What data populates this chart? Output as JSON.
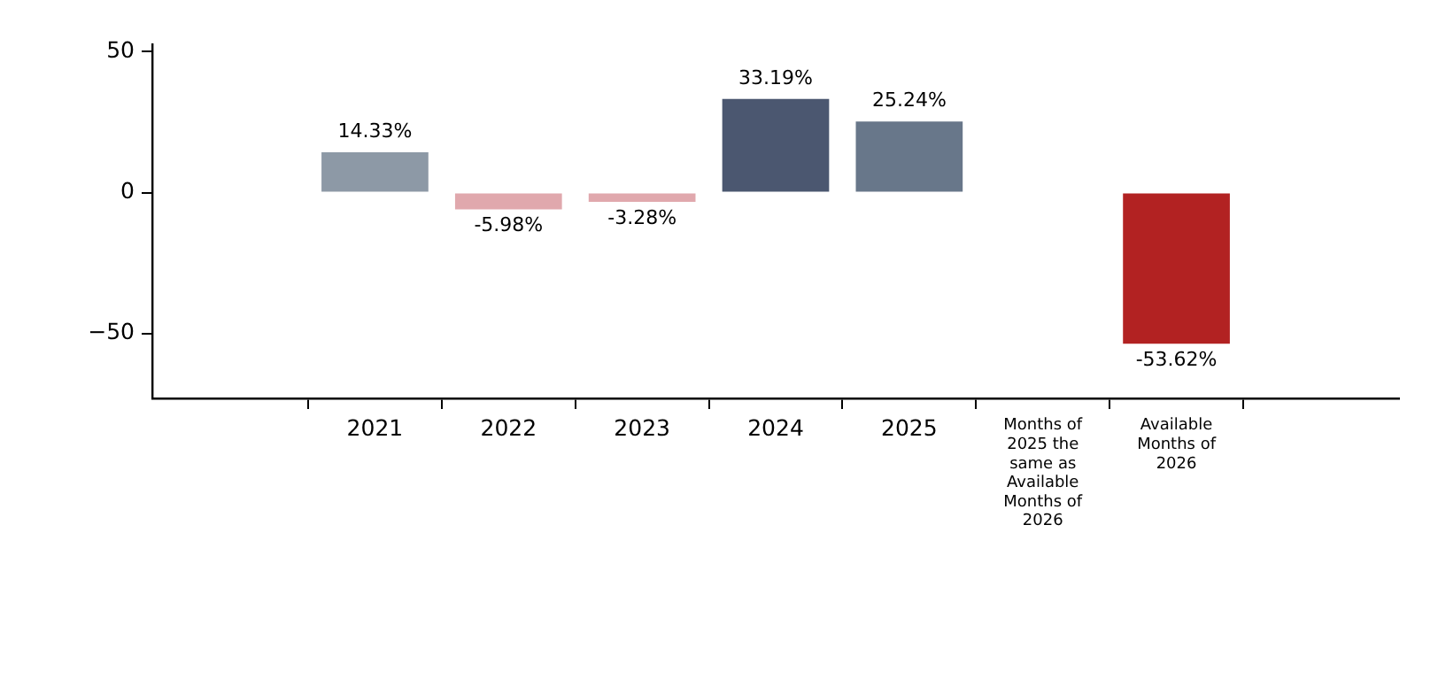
{
  "chart_data": {
    "type": "bar",
    "categories": [
      "2021",
      "2022",
      "2023",
      "2024",
      "2025",
      "Months of 2025 the same as Available Months of 2026",
      "Available Months of 2026"
    ],
    "values": [
      14.33,
      -5.98,
      -3.28,
      33.19,
      25.24,
      null,
      -53.62
    ],
    "colors": [
      "#8d99a6",
      "#e0a8ad",
      "#e0a8ad",
      "#4b5770",
      "#68778a",
      "#cccccc",
      "#b22222"
    ],
    "value_labels": [
      "14.33%",
      "-5.98%",
      "-3.28%",
      "33.19%",
      "25.24%",
      null,
      "-53.62%"
    ],
    "ylim": [
      -73,
      52.6
    ],
    "yticks": [
      -50,
      0,
      50
    ],
    "grid": false,
    "legend": false
  }
}
